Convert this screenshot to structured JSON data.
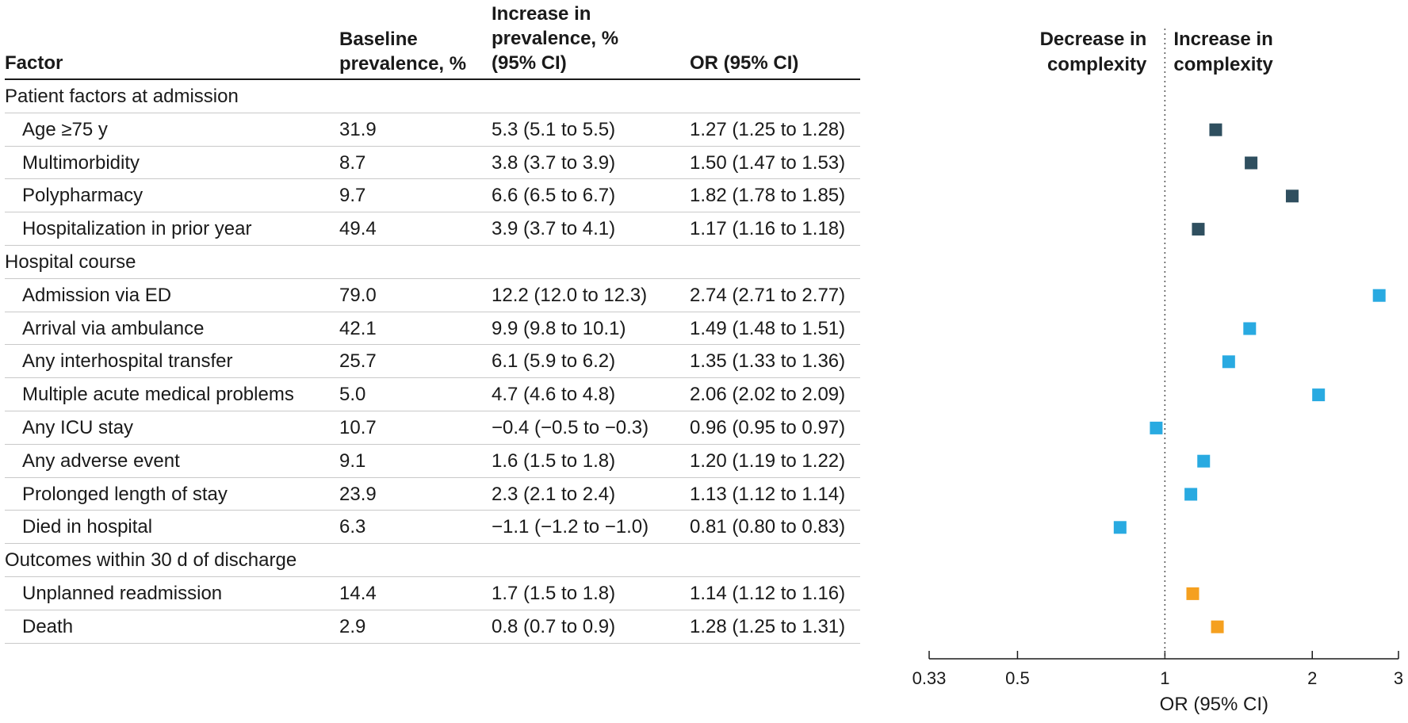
{
  "headers": {
    "factor": "Factor",
    "baseline_1": "Baseline",
    "baseline_2": "prevalence, %",
    "increase_1": "Increase in",
    "increase_2": "prevalence, %",
    "increase_3": "(95% CI)",
    "or": "OR (95% CI)"
  },
  "sections": [
    {
      "label": "Patient factors at admission",
      "color": "#2f4f5f",
      "rows": [
        {
          "factor": "Age ≥75 y",
          "baseline": "31.9",
          "increase": "5.3 (5.1 to 5.5)",
          "or": "1.27 (1.25 to 1.28)"
        },
        {
          "factor": "Multimorbidity",
          "baseline": "8.7",
          "increase": "3.8 (3.7 to 3.9)",
          "or": "1.50 (1.47 to 1.53)"
        },
        {
          "factor": "Polypharmacy",
          "baseline": "9.7",
          "increase": "6.6 (6.5 to 6.7)",
          "or": "1.82 (1.78 to 1.85)"
        },
        {
          "factor": "Hospitalization in prior year",
          "baseline": "49.4",
          "increase": "3.9 (3.7 to 4.1)",
          "or": "1.17 (1.16 to 1.18)"
        }
      ]
    },
    {
      "label": "Hospital course",
      "color": "#29aae1",
      "rows": [
        {
          "factor": "Admission via ED",
          "baseline": "79.0",
          "increase": "12.2 (12.0 to 12.3)",
          "or": "2.74 (2.71 to 2.77)"
        },
        {
          "factor": "Arrival via ambulance",
          "baseline": "42.1",
          "increase": "9.9 (9.8 to 10.1)",
          "or": "1.49 (1.48 to 1.51)"
        },
        {
          "factor": "Any interhospital transfer",
          "baseline": "25.7",
          "increase": "6.1 (5.9 to 6.2)",
          "or": "1.35 (1.33 to 1.36)"
        },
        {
          "factor": "Multiple acute medical problems",
          "baseline": "5.0",
          "increase": "4.7 (4.6 to 4.8)",
          "or": "2.06 (2.02 to 2.09)"
        },
        {
          "factor": "Any ICU stay",
          "baseline": "10.7",
          "increase": "−0.4 (−0.5 to −0.3)",
          "or": "0.96 (0.95 to 0.97)"
        },
        {
          "factor": "Any adverse event",
          "baseline": "9.1",
          "increase": "1.6 (1.5 to 1.8)",
          "or": "1.20 (1.19 to 1.22)"
        },
        {
          "factor": "Prolonged length of stay",
          "baseline": "23.9",
          "increase": "2.3 (2.1 to 2.4)",
          "or": "1.13 (1.12 to 1.14)"
        },
        {
          "factor": "Died in hospital",
          "baseline": "6.3",
          "increase": "−1.1 (−1.2 to −1.0)",
          "or": "0.81 (0.80 to 0.83)"
        }
      ]
    },
    {
      "label": "Outcomes within 30 d of discharge",
      "color": "#f5a01f",
      "rows": [
        {
          "factor": "Unplanned readmission",
          "baseline": "14.4",
          "increase": "1.7 (1.5 to 1.8)",
          "or": "1.14 (1.12 to 1.16)"
        },
        {
          "factor": "Death",
          "baseline": "2.9",
          "increase": "0.8 (0.7 to 0.9)",
          "or": "1.28 (1.25 to 1.31)"
        }
      ]
    }
  ],
  "chart_data": {
    "type": "scatter",
    "x_scale": "log",
    "xlim": [
      0.33,
      3
    ],
    "xticks": [
      0.33,
      0.5,
      1,
      2,
      3
    ],
    "xtick_labels": [
      "0.33",
      "0.5",
      "1",
      "2",
      "3"
    ],
    "xlabel": "OR (95% CI)",
    "reference_x": 1,
    "left_annotation": [
      "Decrease in",
      "complexity"
    ],
    "right_annotation": [
      "Increase in",
      "complexity"
    ],
    "series": [
      {
        "name": "Patient factors at admission",
        "color": "#2f4f5f",
        "categories": [
          "Age ≥75 y",
          "Multimorbidity",
          "Polypharmacy",
          "Hospitalization in prior year"
        ],
        "values": [
          1.27,
          1.5,
          1.82,
          1.17
        ]
      },
      {
        "name": "Hospital course",
        "color": "#29aae1",
        "categories": [
          "Admission via ED",
          "Arrival via ambulance",
          "Any interhospital transfer",
          "Multiple acute medical problems",
          "Any ICU stay",
          "Any adverse event",
          "Prolonged length of stay",
          "Died in hospital"
        ],
        "values": [
          2.74,
          1.49,
          1.35,
          2.06,
          0.96,
          1.2,
          1.13,
          0.81
        ]
      },
      {
        "name": "Outcomes within 30 d of discharge",
        "color": "#f5a01f",
        "categories": [
          "Unplanned readmission",
          "Death"
        ],
        "values": [
          1.14,
          1.28
        ]
      }
    ]
  }
}
